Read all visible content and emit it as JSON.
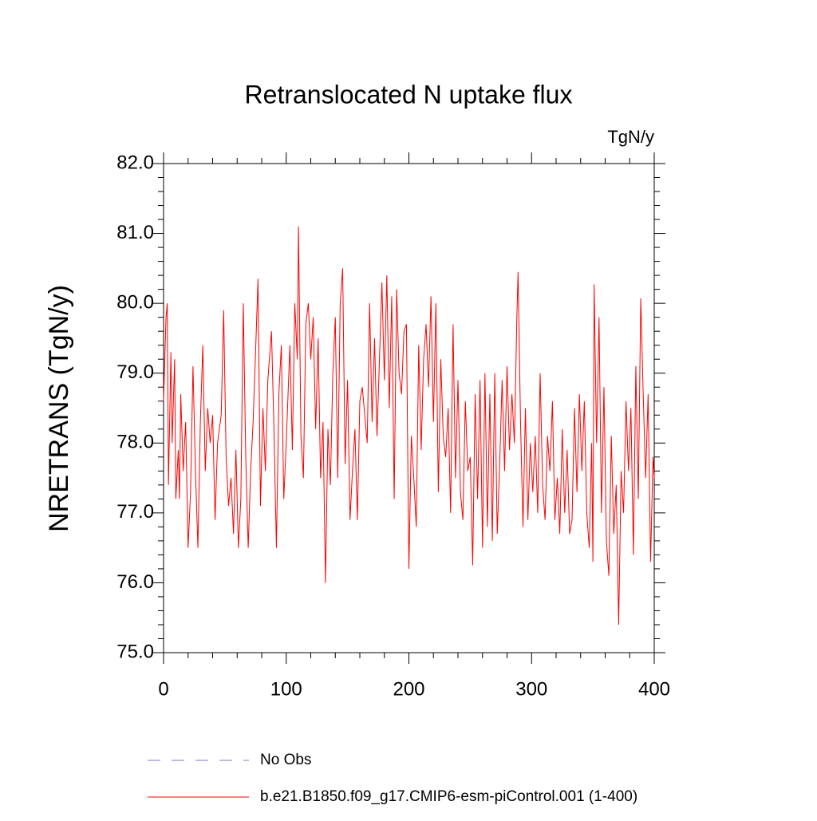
{
  "chart_data": {
    "type": "line",
    "title": "Retranslocated N uptake flux",
    "units": "TgN/y",
    "y_label": "NRETRANS  (TgN/y)",
    "xlim": [
      0,
      400
    ],
    "xticks": [
      0,
      100,
      200,
      300,
      400
    ],
    "ylim": [
      75,
      82
    ],
    "yticks": [
      {
        "value": 75,
        "label": "75.0"
      },
      {
        "value": 76,
        "label": "76.0"
      },
      {
        "value": 77,
        "label": "77.0"
      },
      {
        "value": 78,
        "label": "78.0"
      },
      {
        "value": 79,
        "label": "79.0"
      },
      {
        "value": 80,
        "label": "80.0"
      },
      {
        "value": 81,
        "label": "81.0"
      },
      {
        "value": 82,
        "label": "82.0"
      }
    ],
    "reference_legend": {
      "name": "No Obs",
      "color": "#7b7bd6",
      "dashed": true
    },
    "x": [
      0,
      2,
      3,
      4,
      6,
      7,
      9,
      10,
      12,
      13,
      14,
      16,
      18,
      20,
      22,
      24,
      26,
      28,
      30,
      32,
      34,
      36,
      38,
      40,
      42,
      44,
      47,
      49,
      51,
      53,
      55,
      57,
      59,
      61,
      63,
      65,
      67,
      69,
      71,
      73,
      75,
      77,
      79,
      81,
      83,
      85,
      88,
      90,
      92,
      94,
      96,
      98,
      100,
      103,
      105,
      107,
      109,
      110,
      112,
      114,
      116,
      118,
      120,
      122,
      124,
      126,
      128,
      130,
      132,
      134,
      136,
      138,
      140,
      142,
      144,
      146,
      148,
      150,
      152,
      154,
      156,
      158,
      160,
      162,
      164,
      166,
      168,
      170,
      172,
      174,
      176,
      178,
      180,
      182,
      184,
      186,
      188,
      190,
      192,
      194,
      196,
      198,
      200,
      202,
      204,
      206,
      208,
      210,
      212,
      214,
      216,
      218,
      220,
      222,
      224,
      226,
      228,
      230,
      232,
      234,
      236,
      238,
      240,
      242,
      244,
      246,
      248,
      250,
      252,
      254,
      256,
      258,
      260,
      262,
      264,
      266,
      268,
      270,
      272,
      274,
      276,
      278,
      280,
      282,
      284,
      286,
      288,
      289,
      291,
      293,
      295,
      297,
      299,
      301,
      303,
      305,
      307,
      309,
      311,
      313,
      315,
      317,
      319,
      321,
      323,
      325,
      327,
      329,
      331,
      333,
      335,
      337,
      339,
      341,
      343,
      345,
      347,
      349,
      350,
      351,
      353,
      355,
      357,
      359,
      361,
      363,
      365,
      367,
      369,
      371,
      373,
      375,
      377,
      379,
      381,
      383,
      385,
      387,
      389,
      391,
      393,
      395,
      397,
      399,
      400
    ],
    "series": [
      {
        "name": "b.e21.B1850.f09_g17.CMIP6-esm-piControl.001 (1-400)",
        "color": "#ff0000",
        "values": [
          78.6,
          79.8,
          80.0,
          77.4,
          79.3,
          78.0,
          79.2,
          77.2,
          77.9,
          77.2,
          78.7,
          77.6,
          78.3,
          76.5,
          77.3,
          79.1,
          77.6,
          76.5,
          78.3,
          79.4,
          77.6,
          78.5,
          78.0,
          78.4,
          76.9,
          78.0,
          78.4,
          79.9,
          77.8,
          77.1,
          77.5,
          76.7,
          77.9,
          76.5,
          77.2,
          80.0,
          77.8,
          76.5,
          77.6,
          78.3,
          79.3,
          80.35,
          77.1,
          78.5,
          77.6,
          78.9,
          79.6,
          78.2,
          76.5,
          78.7,
          79.4,
          77.2,
          78.0,
          79.4,
          77.9,
          80.0,
          79.2,
          81.1,
          78.1,
          77.5,
          79.7,
          80.0,
          79.2,
          79.8,
          78.2,
          79.5,
          77.5,
          78.3,
          76.0,
          78.2,
          77.4,
          79.0,
          79.8,
          77.5,
          80.0,
          80.5,
          77.7,
          78.9,
          76.9,
          77.6,
          78.2,
          76.9,
          78.6,
          78.8,
          78.4,
          78.0,
          80.0,
          78.3,
          79.5,
          78.1,
          79.2,
          80.3,
          78.9,
          80.4,
          78.5,
          80.1,
          77.2,
          80.2,
          79.0,
          78.7,
          79.6,
          79.7,
          76.2,
          78.1,
          77.5,
          76.8,
          79.4,
          77.9,
          79.2,
          79.7,
          78.8,
          80.1,
          78.3,
          80.0,
          77.3,
          79.2,
          78.1,
          77.8,
          78.5,
          77.0,
          79.7,
          77.5,
          78.9,
          77.3,
          76.9,
          78.6,
          77.6,
          77.8,
          76.25,
          78.7,
          77.2,
          78.9,
          76.5,
          79.0,
          76.8,
          78.7,
          76.6,
          79.0,
          76.7,
          77.7,
          78.9,
          77.6,
          79.1,
          77.9,
          78.7,
          78.0,
          79.8,
          80.45,
          78.3,
          76.8,
          78.5,
          76.9,
          78.0,
          77.3,
          78.1,
          77.0,
          79.0,
          77.4,
          76.9,
          78.1,
          77.6,
          78.6,
          76.9,
          77.5,
          76.7,
          78.2,
          77.0,
          77.9,
          76.7,
          76.9,
          78.5,
          77.3,
          78.7,
          77.6,
          78.6,
          77.0,
          76.5,
          78.0,
          76.3,
          80.27,
          78.0,
          79.8,
          77.0,
          78.8,
          76.6,
          76.1,
          78.1,
          76.7,
          77.4,
          75.4,
          77.6,
          77.0,
          78.6,
          77.6,
          78.5,
          76.4,
          79.1,
          77.2,
          80.07,
          78.7,
          77.5,
          78.7,
          76.3,
          77.8,
          77.5
        ]
      }
    ]
  }
}
